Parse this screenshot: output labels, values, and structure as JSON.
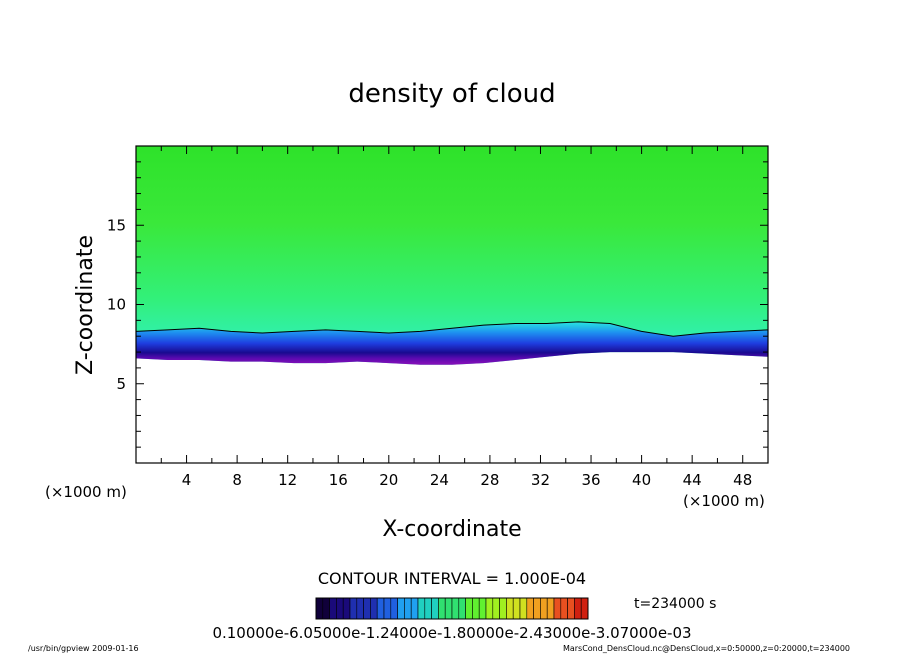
{
  "chart_data": {
    "type": "heatmap",
    "title": "density of cloud",
    "xlabel": "X-coordinate",
    "ylabel": "Z-coordinate",
    "x_unit": "(×1000 m)",
    "y_unit": "(×1000 m)",
    "xlim": [
      0,
      50
    ],
    "ylim": [
      0,
      20
    ],
    "x_ticks": [
      "4",
      "8",
      "12",
      "16",
      "20",
      "24",
      "28",
      "32",
      "36",
      "40",
      "44",
      "48"
    ],
    "y_ticks": [
      "5",
      "10",
      "15"
    ],
    "cloud_base_z": [
      6.6,
      6.5,
      6.5,
      6.4,
      6.4,
      6.3,
      6.3,
      6.4,
      6.3,
      6.2,
      6.2,
      6.3,
      6.5,
      6.7,
      6.9,
      7.0,
      7.0,
      7.0,
      6.9,
      6.8,
      6.7
    ],
    "cloud_top_z": [
      8.3,
      8.4,
      8.5,
      8.3,
      8.2,
      8.3,
      8.4,
      8.3,
      8.2,
      8.3,
      8.5,
      8.7,
      8.8,
      8.8,
      8.9,
      8.8,
      8.3,
      8.0,
      8.2,
      8.3,
      8.4
    ],
    "contour_interval": "CONTOUR INTERVAL = 1.000E-04",
    "colorbar_labels": "0.10000e-6.05000e-1.24000e-1.80000e-2.43000e-3.07000e-03",
    "colorbar_colors": [
      "#10003a",
      "#1a0a7a",
      "#1f2fb0",
      "#2060e0",
      "#20a0f0",
      "#20d0c0",
      "#30e070",
      "#60f030",
      "#a0f020",
      "#d0e020",
      "#f0a020",
      "#e85020",
      "#d02010"
    ],
    "time_label": "t=234000 s"
  },
  "footer": {
    "left": "/usr/bin/gpview  2009-01-16",
    "right": "MarsCond_DensCloud.nc@DensCloud,x=0:50000,z=0:20000,t=234000"
  }
}
